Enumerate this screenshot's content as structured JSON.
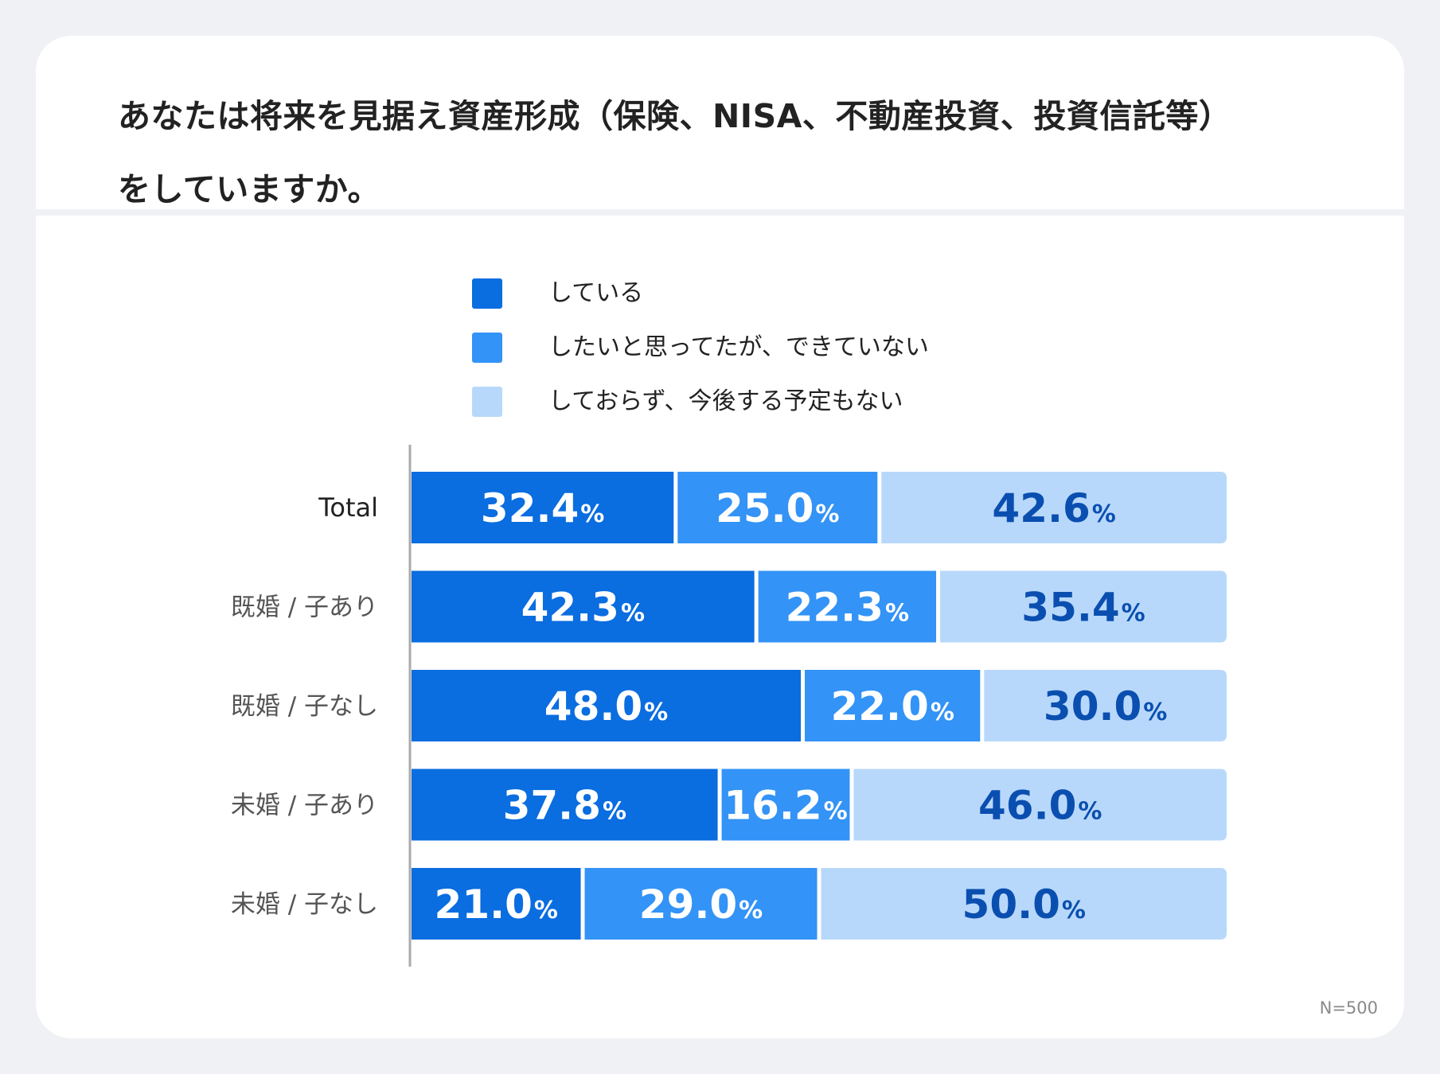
{
  "title_lines": [
    "あなたは将来を見据え資産形成（保険、NISA、不動産投資、投資信託等）",
    "をしていますか。"
  ],
  "note": "N=500",
  "colors": {
    "page_background": "#f0f1f4",
    "card_background": "#ffffff",
    "text": "#222222",
    "category_muted": "#555555",
    "axis_line": "#aaaaaa"
  },
  "chart_data": {
    "type": "bar",
    "orientation": "horizontal",
    "stacked": true,
    "percent_stacked": true,
    "categories": [
      "Total",
      "既婚 / 子あり",
      "既婚 / 子なし",
      "未婚 / 子あり",
      "未婚 / 子なし"
    ],
    "series": [
      {
        "name": "している",
        "color": "#0a6de0",
        "label_color": "#ffffff",
        "values": [
          32.4,
          42.3,
          48.0,
          37.8,
          21.0
        ]
      },
      {
        "name": "したいと思ってたが、できていない",
        "color": "#3393f6",
        "label_color": "#ffffff",
        "values": [
          25.0,
          22.3,
          22.0,
          16.2,
          29.0
        ]
      },
      {
        "name": "しておらず、今後する予定もない",
        "color": "#b8d8fb",
        "label_color": "#0a4fb0",
        "values": [
          42.6,
          35.4,
          30.0,
          46.0,
          50.0
        ]
      }
    ],
    "unit": "%",
    "xlim": [
      0,
      100
    ],
    "legend_position": "top",
    "grid": false,
    "data_labels": true
  }
}
